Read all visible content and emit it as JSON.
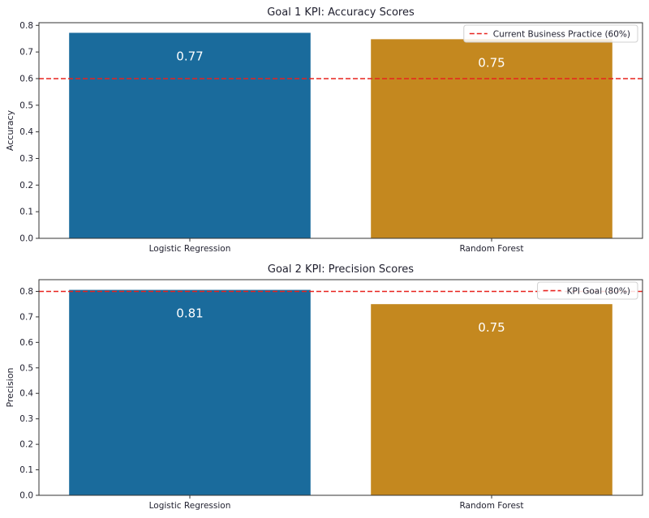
{
  "chart_data": [
    {
      "type": "bar",
      "title": "Goal 1 KPI: Accuracy Scores",
      "xlabel": "",
      "ylabel": "Accuracy",
      "categories": [
        "Logistic Regression",
        "Random Forest"
      ],
      "values": [
        0.772,
        0.748
      ],
      "value_labels": [
        "0.77",
        "0.75"
      ],
      "ylim": [
        0,
        0.81
      ],
      "yticks": [
        0.0,
        0.1,
        0.2,
        0.3,
        0.4,
        0.5,
        0.6,
        0.7,
        0.8
      ],
      "ytick_labels": [
        "0.0",
        "0.1",
        "0.2",
        "0.3",
        "0.4",
        "0.5",
        "0.6",
        "0.7",
        "0.8"
      ],
      "bar_colors": [
        "#1a6b9c",
        "#c4881f"
      ],
      "reference_line": {
        "value": 0.6,
        "label": "Current Business Practice (60%)",
        "color": "#e8231f",
        "style": "dashed"
      },
      "legend_position": "top-right"
    },
    {
      "type": "bar",
      "title": "Goal 2 KPI: Precision Scores",
      "xlabel": "",
      "ylabel": "Precision",
      "categories": [
        "Logistic Regression",
        "Random Forest"
      ],
      "values": [
        0.806,
        0.75
      ],
      "value_labels": [
        "0.81",
        "0.75"
      ],
      "ylim": [
        0,
        0.846
      ],
      "yticks": [
        0.0,
        0.1,
        0.2,
        0.3,
        0.4,
        0.5,
        0.6,
        0.7,
        0.8
      ],
      "ytick_labels": [
        "0.0",
        "0.1",
        "0.2",
        "0.3",
        "0.4",
        "0.5",
        "0.6",
        "0.7",
        "0.8"
      ],
      "bar_colors": [
        "#1a6b9c",
        "#c4881f"
      ],
      "reference_line": {
        "value": 0.8,
        "label": "KPI Goal (80%)",
        "color": "#e8231f",
        "style": "dashed"
      },
      "legend_position": "top-right"
    }
  ]
}
